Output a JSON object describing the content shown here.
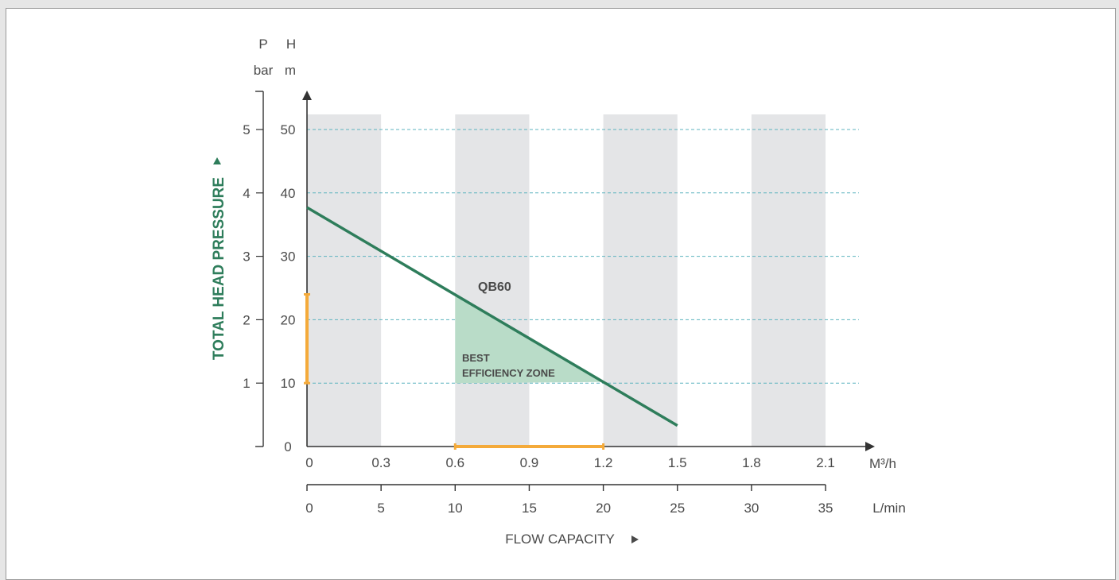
{
  "chart_data": {
    "type": "line",
    "title": "",
    "ylabel": "TOTAL HEAD PRESSURE",
    "xlabel": "FLOW CAPACITY",
    "y_units": {
      "pressure": {
        "symbol": "P",
        "unit": "bar"
      },
      "head": {
        "symbol": "H",
        "unit": "m"
      }
    },
    "x_units": {
      "primary": "M³/h",
      "secondary": "L/min"
    },
    "y_head_ticks": [
      "0",
      "10",
      "20",
      "30",
      "40",
      "50"
    ],
    "y_pressure_ticks": [
      "1",
      "2",
      "3",
      "4",
      "5"
    ],
    "x_m3h_ticks": [
      "0",
      "0.3",
      "0.6",
      "0.9",
      "1.2",
      "1.5",
      "1.8",
      "2.1"
    ],
    "x_lmin_ticks": [
      "0",
      "5",
      "10",
      "15",
      "20",
      "25",
      "30",
      "35"
    ],
    "xlim_lmin": [
      0,
      35
    ],
    "ylim_head": [
      0,
      52.5
    ],
    "grid": "dashed horizontal at 10, 20, 30, 40, 50 m",
    "shaded_bands_lmin": [
      [
        0,
        5
      ],
      [
        10,
        15
      ],
      [
        20,
        25
      ],
      [
        30,
        35
      ]
    ],
    "series": [
      {
        "name": "QB60",
        "color": "#2e7d5b",
        "points": [
          {
            "x": 0,
            "y": 37.7
          },
          {
            "x": 25,
            "y": 3.3
          }
        ]
      }
    ],
    "best_efficiency_zone": {
      "label_line1": "BEST",
      "label_line2": "EFFICIENCY ZONE",
      "x_range_lmin": [
        10,
        20
      ],
      "y_range_m": [
        10,
        24
      ]
    },
    "highlight_color": "#f4aa3a",
    "grid_color": "#5cb3bf",
    "band_color": "#e4e5e7"
  }
}
